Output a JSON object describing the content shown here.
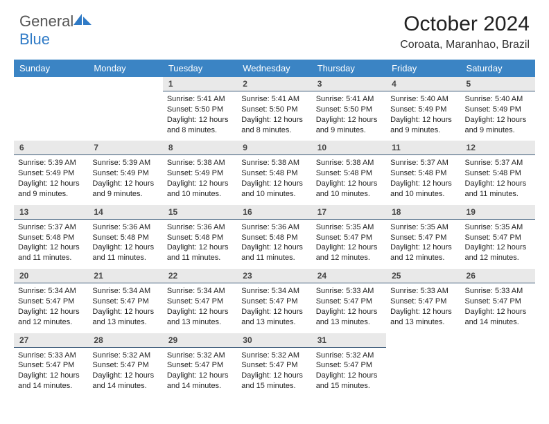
{
  "logo": {
    "text_general": "General",
    "text_blue": "Blue"
  },
  "title": "October 2024",
  "location": "Coroata, Maranhao, Brazil",
  "colors": {
    "header_bg": "#3b84c4",
    "header_text": "#ffffff",
    "daynum_bg": "#e9e9e9",
    "daynum_border": "#3b5a78",
    "body_text": "#222222"
  },
  "day_headers": [
    "Sunday",
    "Monday",
    "Tuesday",
    "Wednesday",
    "Thursday",
    "Friday",
    "Saturday"
  ],
  "weeks": [
    [
      null,
      null,
      {
        "n": "1",
        "sr": "5:41 AM",
        "ss": "5:50 PM",
        "dl": "12 hours and 8 minutes."
      },
      {
        "n": "2",
        "sr": "5:41 AM",
        "ss": "5:50 PM",
        "dl": "12 hours and 8 minutes."
      },
      {
        "n": "3",
        "sr": "5:41 AM",
        "ss": "5:50 PM",
        "dl": "12 hours and 9 minutes."
      },
      {
        "n": "4",
        "sr": "5:40 AM",
        "ss": "5:49 PM",
        "dl": "12 hours and 9 minutes."
      },
      {
        "n": "5",
        "sr": "5:40 AM",
        "ss": "5:49 PM",
        "dl": "12 hours and 9 minutes."
      }
    ],
    [
      {
        "n": "6",
        "sr": "5:39 AM",
        "ss": "5:49 PM",
        "dl": "12 hours and 9 minutes."
      },
      {
        "n": "7",
        "sr": "5:39 AM",
        "ss": "5:49 PM",
        "dl": "12 hours and 9 minutes."
      },
      {
        "n": "8",
        "sr": "5:38 AM",
        "ss": "5:49 PM",
        "dl": "12 hours and 10 minutes."
      },
      {
        "n": "9",
        "sr": "5:38 AM",
        "ss": "5:48 PM",
        "dl": "12 hours and 10 minutes."
      },
      {
        "n": "10",
        "sr": "5:38 AM",
        "ss": "5:48 PM",
        "dl": "12 hours and 10 minutes."
      },
      {
        "n": "11",
        "sr": "5:37 AM",
        "ss": "5:48 PM",
        "dl": "12 hours and 10 minutes."
      },
      {
        "n": "12",
        "sr": "5:37 AM",
        "ss": "5:48 PM",
        "dl": "12 hours and 11 minutes."
      }
    ],
    [
      {
        "n": "13",
        "sr": "5:37 AM",
        "ss": "5:48 PM",
        "dl": "12 hours and 11 minutes."
      },
      {
        "n": "14",
        "sr": "5:36 AM",
        "ss": "5:48 PM",
        "dl": "12 hours and 11 minutes."
      },
      {
        "n": "15",
        "sr": "5:36 AM",
        "ss": "5:48 PM",
        "dl": "12 hours and 11 minutes."
      },
      {
        "n": "16",
        "sr": "5:36 AM",
        "ss": "5:48 PM",
        "dl": "12 hours and 11 minutes."
      },
      {
        "n": "17",
        "sr": "5:35 AM",
        "ss": "5:47 PM",
        "dl": "12 hours and 12 minutes."
      },
      {
        "n": "18",
        "sr": "5:35 AM",
        "ss": "5:47 PM",
        "dl": "12 hours and 12 minutes."
      },
      {
        "n": "19",
        "sr": "5:35 AM",
        "ss": "5:47 PM",
        "dl": "12 hours and 12 minutes."
      }
    ],
    [
      {
        "n": "20",
        "sr": "5:34 AM",
        "ss": "5:47 PM",
        "dl": "12 hours and 12 minutes."
      },
      {
        "n": "21",
        "sr": "5:34 AM",
        "ss": "5:47 PM",
        "dl": "12 hours and 13 minutes."
      },
      {
        "n": "22",
        "sr": "5:34 AM",
        "ss": "5:47 PM",
        "dl": "12 hours and 13 minutes."
      },
      {
        "n": "23",
        "sr": "5:34 AM",
        "ss": "5:47 PM",
        "dl": "12 hours and 13 minutes."
      },
      {
        "n": "24",
        "sr": "5:33 AM",
        "ss": "5:47 PM",
        "dl": "12 hours and 13 minutes."
      },
      {
        "n": "25",
        "sr": "5:33 AM",
        "ss": "5:47 PM",
        "dl": "12 hours and 13 minutes."
      },
      {
        "n": "26",
        "sr": "5:33 AM",
        "ss": "5:47 PM",
        "dl": "12 hours and 14 minutes."
      }
    ],
    [
      {
        "n": "27",
        "sr": "5:33 AM",
        "ss": "5:47 PM",
        "dl": "12 hours and 14 minutes."
      },
      {
        "n": "28",
        "sr": "5:32 AM",
        "ss": "5:47 PM",
        "dl": "12 hours and 14 minutes."
      },
      {
        "n": "29",
        "sr": "5:32 AM",
        "ss": "5:47 PM",
        "dl": "12 hours and 14 minutes."
      },
      {
        "n": "30",
        "sr": "5:32 AM",
        "ss": "5:47 PM",
        "dl": "12 hours and 15 minutes."
      },
      {
        "n": "31",
        "sr": "5:32 AM",
        "ss": "5:47 PM",
        "dl": "12 hours and 15 minutes."
      },
      null,
      null
    ]
  ],
  "labels": {
    "sunrise": "Sunrise:",
    "sunset": "Sunset:",
    "daylight": "Daylight:"
  }
}
